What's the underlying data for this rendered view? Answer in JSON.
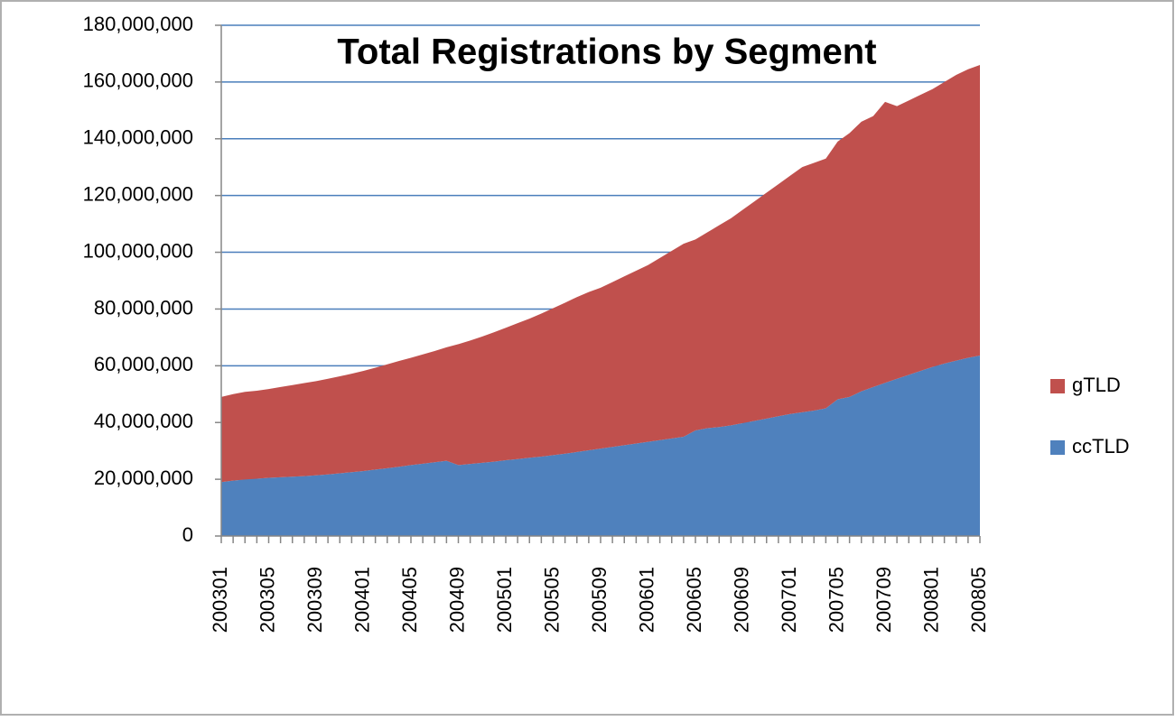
{
  "chart_data": {
    "type": "stacked_area",
    "title": "Total Registrations by Segment",
    "categories": [
      "200301",
      null,
      null,
      null,
      "200305",
      null,
      null,
      null,
      "200309",
      null,
      null,
      null,
      "200401",
      null,
      null,
      null,
      "200405",
      null,
      null,
      null,
      "200409",
      null,
      null,
      null,
      "200501",
      null,
      null,
      null,
      "200505",
      null,
      null,
      null,
      "200509",
      null,
      null,
      null,
      "200601",
      null,
      null,
      null,
      "200605",
      null,
      null,
      null,
      "200609",
      null,
      null,
      null,
      "200701",
      null,
      null,
      null,
      "200705",
      null,
      null,
      null,
      "200709",
      null,
      null,
      null,
      "200801",
      null,
      null,
      null,
      "200805"
    ],
    "series": [
      {
        "name": "ccTLD",
        "color": "#4f81bd",
        "values": [
          19000000,
          19500000,
          19900000,
          20200000,
          20500000,
          20700000,
          20900000,
          21100000,
          21400000,
          21700000,
          22100000,
          22500000,
          22900000,
          23400000,
          23900000,
          24400000,
          25000000,
          25500000,
          26000000,
          26500000,
          25000000,
          25400000,
          25800000,
          26200000,
          26700000,
          27100000,
          27600000,
          28000000,
          28500000,
          29000000,
          29600000,
          30200000,
          30800000,
          31400000,
          32000000,
          32600000,
          33200000,
          33800000,
          34400000,
          35000000,
          37200000,
          38000000,
          38400000,
          39000000,
          39800000,
          40600000,
          41400000,
          42200000,
          43000000,
          43600000,
          44200000,
          45000000,
          48200000,
          49000000,
          51000000,
          52500000,
          54000000,
          55400000,
          56800000,
          58200000,
          59600000,
          60800000,
          61800000,
          62800000,
          63600000
        ]
      },
      {
        "name": "gTLD",
        "color": "#c0504d",
        "values": [
          30000000,
          30500000,
          30900000,
          31000000,
          31300000,
          31800000,
          32300000,
          32800000,
          33200000,
          33700000,
          34200000,
          34700000,
          35300000,
          35900000,
          36600000,
          37300000,
          37800000,
          38500000,
          39200000,
          40000000,
          42600000,
          43500000,
          44500000,
          45600000,
          46700000,
          47900000,
          49000000,
          50400000,
          51800000,
          53200000,
          54600000,
          55800000,
          56700000,
          58100000,
          59500000,
          60900000,
          62300000,
          64200000,
          66100000,
          68000000,
          67300000,
          69000000,
          71100000,
          73000000,
          75200000,
          77400000,
          79600000,
          81800000,
          84000000,
          86400000,
          87300000,
          88000000,
          90800000,
          93000000,
          95000000,
          95500000,
          99000000,
          96100000,
          96700000,
          97300000,
          97900000,
          99200000,
          100700000,
          101700000,
          102400000
        ]
      }
    ],
    "ylim": [
      0,
      180000000
    ],
    "yticks": [
      0,
      {
        "value": 20000000,
        "label": "20,000,000"
      },
      {
        "value": 40000000,
        "label": "40,000,000"
      },
      {
        "value": 60000000,
        "label": "60,000,000"
      },
      {
        "value": 80000000,
        "label": "80,000,000"
      },
      {
        "value": 100000000,
        "label": "100,000,000"
      },
      {
        "value": 120000000,
        "label": "120,000,000"
      },
      {
        "value": 140000000,
        "label": "140,000,000"
      },
      {
        "value": 160000000,
        "label": "160,000,000"
      },
      {
        "value": 180000000,
        "label": "180,000,000"
      }
    ],
    "grid": true,
    "legend": "right"
  }
}
